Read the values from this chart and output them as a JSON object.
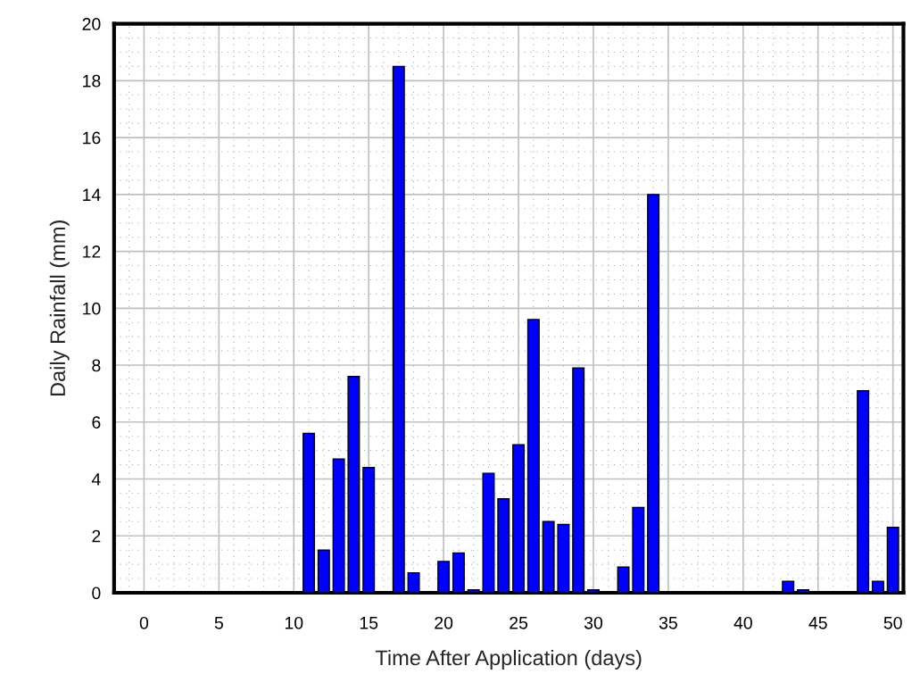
{
  "chart_data": {
    "type": "bar",
    "xlabel": "Time After Application (days)",
    "ylabel": "Daily Rainfall (mm)",
    "x": [
      11,
      12,
      13,
      14,
      15,
      17,
      18,
      20,
      21,
      22,
      23,
      24,
      25,
      26,
      27,
      28,
      29,
      30,
      32,
      33,
      34,
      43,
      44,
      48,
      49,
      50
    ],
    "values": [
      5.6,
      1.5,
      4.7,
      7.6,
      4.4,
      18.5,
      0.7,
      1.1,
      1.4,
      0.1,
      4.2,
      3.3,
      5.2,
      9.6,
      2.5,
      2.4,
      7.9,
      0.1,
      0.9,
      3.0,
      14.0,
      0.4,
      0.1,
      7.1,
      0.4,
      2.3
    ],
    "color": "#0000ff",
    "xlim": [
      -2,
      50.7
    ],
    "xticks": [
      0,
      5,
      10,
      15,
      20,
      25,
      30,
      35,
      40,
      45,
      50
    ],
    "ylim": [
      0,
      20
    ],
    "yticks": [
      0,
      2,
      4,
      6,
      8,
      10,
      12,
      14,
      16,
      18,
      20
    ],
    "grid": true
  }
}
